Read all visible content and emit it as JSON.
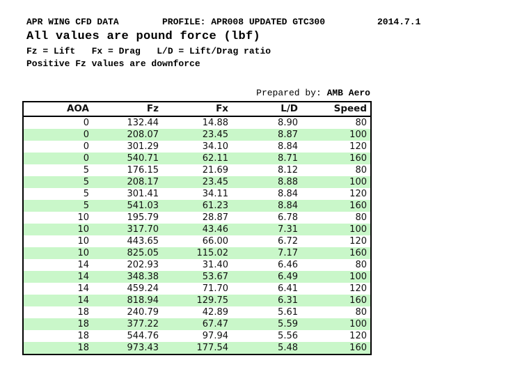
{
  "document": {
    "line1": {
      "title": "APR WING CFD DATA",
      "profile": "PROFILE: APR008 UPDATED GTC300",
      "date": "2014.7.1"
    },
    "subtitle": "All values are pound force (lbf)",
    "legend": "Fz = Lift   Fx = Drag   L/D = Lift/Drag ratio",
    "note": "Positive Fz values are downforce",
    "prepared_by": {
      "label": "Prepared by: ",
      "value": "AMB Aero"
    }
  },
  "table": {
    "columns": [
      "AOA",
      "Fz",
      "Fx",
      "L/D",
      "Speed"
    ],
    "rows": [
      [
        "0",
        "132.44",
        "14.88",
        "8.90",
        "80"
      ],
      [
        "0",
        "208.07",
        "23.45",
        "8.87",
        "100"
      ],
      [
        "0",
        "301.29",
        "34.10",
        "8.84",
        "120"
      ],
      [
        "0",
        "540.71",
        "62.11",
        "8.71",
        "160"
      ],
      [
        "5",
        "176.15",
        "21.69",
        "8.12",
        "80"
      ],
      [
        "5",
        "208.17",
        "23.45",
        "8.88",
        "100"
      ],
      [
        "5",
        "301.41",
        "34.11",
        "8.84",
        "120"
      ],
      [
        "5",
        "541.03",
        "61.23",
        "8.84",
        "160"
      ],
      [
        "10",
        "195.79",
        "28.87",
        "6.78",
        "80"
      ],
      [
        "10",
        "317.70",
        "43.46",
        "7.31",
        "100"
      ],
      [
        "10",
        "443.65",
        "66.00",
        "6.72",
        "120"
      ],
      [
        "10",
        "825.05",
        "115.02",
        "7.17",
        "160"
      ],
      [
        "14",
        "202.93",
        "31.40",
        "6.46",
        "80"
      ],
      [
        "14",
        "348.38",
        "53.67",
        "6.49",
        "100"
      ],
      [
        "14",
        "459.24",
        "71.70",
        "6.41",
        "120"
      ],
      [
        "14",
        "818.94",
        "129.75",
        "6.31",
        "160"
      ],
      [
        "18",
        "240.79",
        "42.89",
        "5.61",
        "80"
      ],
      [
        "18",
        "377.22",
        "67.47",
        "5.59",
        "100"
      ],
      [
        "18",
        "544.76",
        "97.94",
        "5.56",
        "120"
      ],
      [
        "18",
        "973.43",
        "177.54",
        "5.48",
        "160"
      ]
    ],
    "colors": {
      "row_alt": "#c9f7c9",
      "border": "#000000",
      "text": "#111111"
    }
  }
}
